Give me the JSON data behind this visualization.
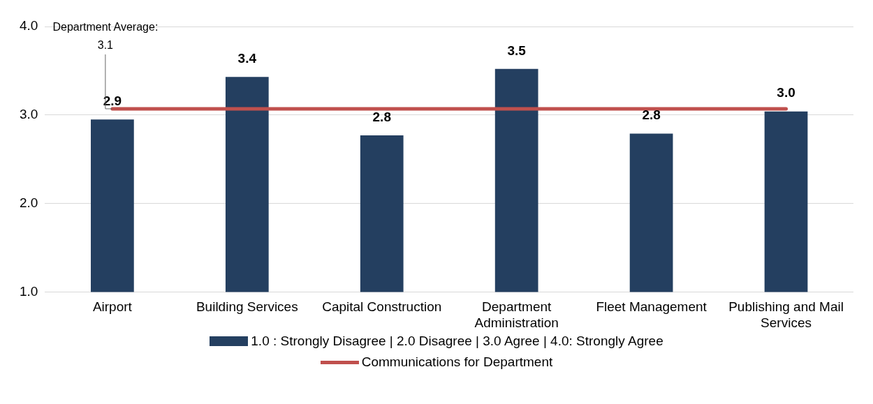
{
  "chart_data": {
    "type": "bar",
    "categories": [
      "Airport",
      "Building Services",
      "Capital Construction",
      "Department Administration",
      "Fleet Management",
      "Publishing and Mail Services"
    ],
    "series": [
      {
        "name": "1.0 : Strongly Disagree | 2.0 Disagree | 3.0 Agree | 4.0: Strongly Agree",
        "color": "#243f60",
        "values": [
          2.95,
          3.43,
          2.77,
          3.52,
          2.79,
          3.04
        ],
        "value_labels": [
          "2.9",
          "3.4",
          "2.8",
          "3.5",
          "2.8",
          "3.0"
        ]
      },
      {
        "name": "Communications for Department",
        "type": "line",
        "color": "#c0504d",
        "values": [
          3.07,
          3.07,
          3.07,
          3.07,
          3.07,
          3.07
        ]
      }
    ],
    "ylim": [
      1,
      4
    ],
    "yticks": [
      {
        "value": 1,
        "label": "1.0"
      },
      {
        "value": 2,
        "label": "2.0"
      },
      {
        "value": 3,
        "label": "3.0"
      },
      {
        "value": 4,
        "label": "4.0"
      }
    ],
    "grid": "y",
    "legend": "bottom",
    "marker": "none",
    "annotations": [
      {
        "text": "Department Average:\n3.1",
        "x": "Airport",
        "y": 3.07
      }
    ]
  }
}
